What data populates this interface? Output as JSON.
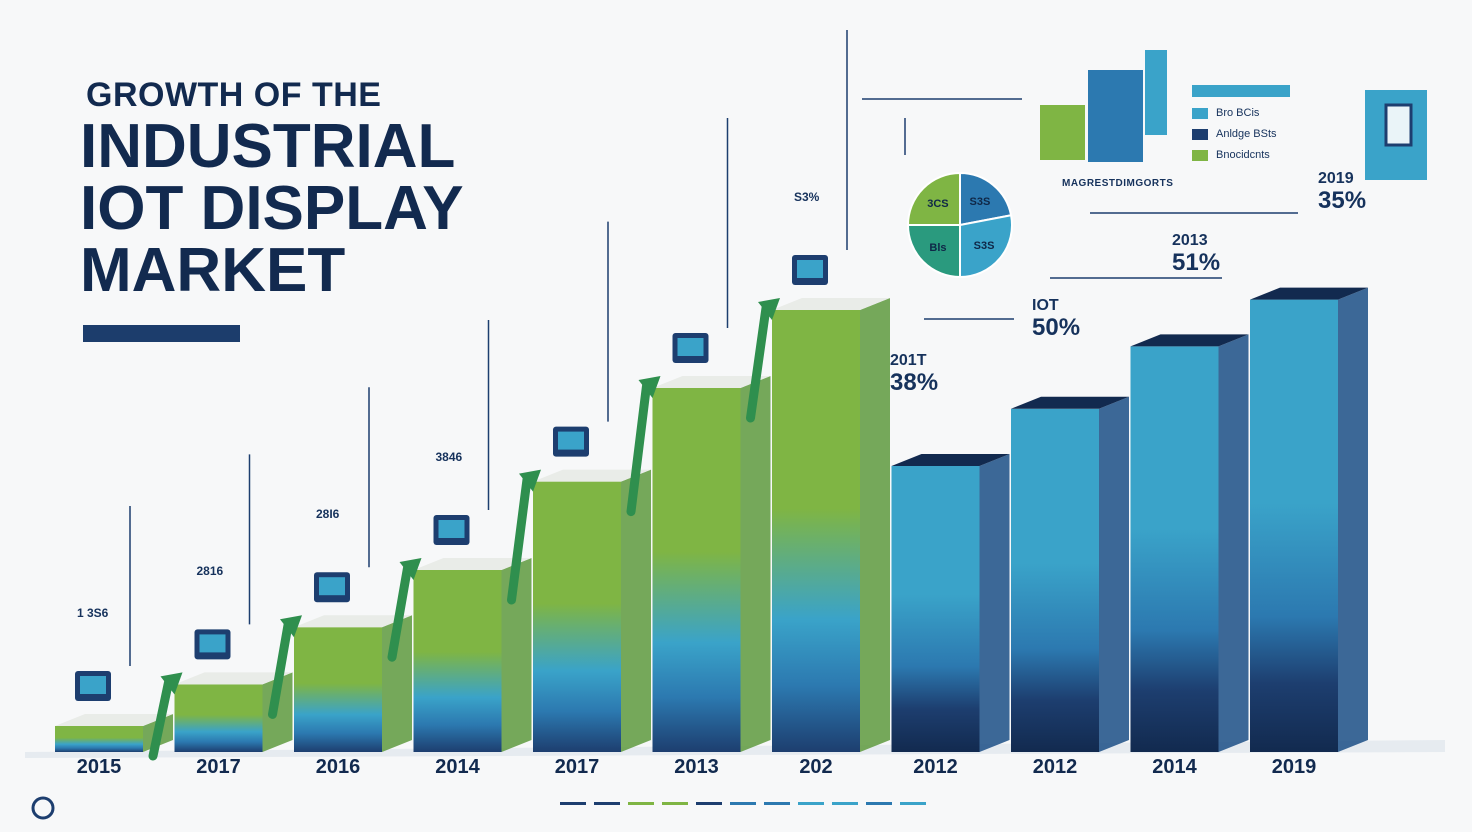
{
  "title": {
    "line1": "GROWTH OF THE",
    "line2": "INDUSTRIAL IOT DISPLAY MARKET"
  },
  "colors": {
    "navy": "#122a4f",
    "dark_blue": "#1d3e6f",
    "mid_blue": "#2c79b0",
    "teal": "#3aa3c9",
    "green": "#7fb544",
    "arrow_green": "#2f8f4e"
  },
  "chart_data": {
    "type": "bar",
    "categories": [
      "2015",
      "2017",
      "2016",
      "2014",
      "2017",
      "2013",
      "202",
      "2012",
      "2012",
      "2014",
      "2019"
    ],
    "values": [
      5,
      13,
      24,
      35,
      52,
      70,
      85,
      55,
      66,
      78,
      87
    ],
    "style": "3d",
    "arrows_between_first_seven": true
  },
  "bar_annotations": [
    {
      "label": "1 3S6",
      "icon": "chart-icon"
    },
    {
      "label": "2816",
      "icon": "chart-icon"
    },
    {
      "label": "28I6",
      "icon": "chart-icon"
    },
    {
      "label": "3846",
      "icon": "chart-icon"
    },
    {
      "label": "",
      "icon": "chart-icon"
    },
    {
      "label": "",
      "icon": "chart-icon"
    },
    {
      "label": "S3%",
      "icon": "chart-icon"
    }
  ],
  "right_labels": [
    {
      "year": "201T",
      "pct": "38%"
    },
    {
      "year": "IOT",
      "pct": "50%"
    },
    {
      "year": "2013",
      "pct": "51%"
    },
    {
      "year": "2019",
      "pct": "35%"
    }
  ],
  "pie": {
    "slices": [
      {
        "label": "S3S",
        "value": 22
      },
      {
        "label": "S3S",
        "value": 28
      },
      {
        "label": "Bls",
        "value": 25
      },
      {
        "label": "3CS",
        "value": 25
      }
    ]
  },
  "legend": {
    "items": [
      {
        "label": "Bro BCis"
      },
      {
        "label": "Anldge BSts"
      },
      {
        "label": "Bnocidcnts"
      }
    ]
  },
  "mini_chart_caption": "MAGRESTDIMGORTS"
}
